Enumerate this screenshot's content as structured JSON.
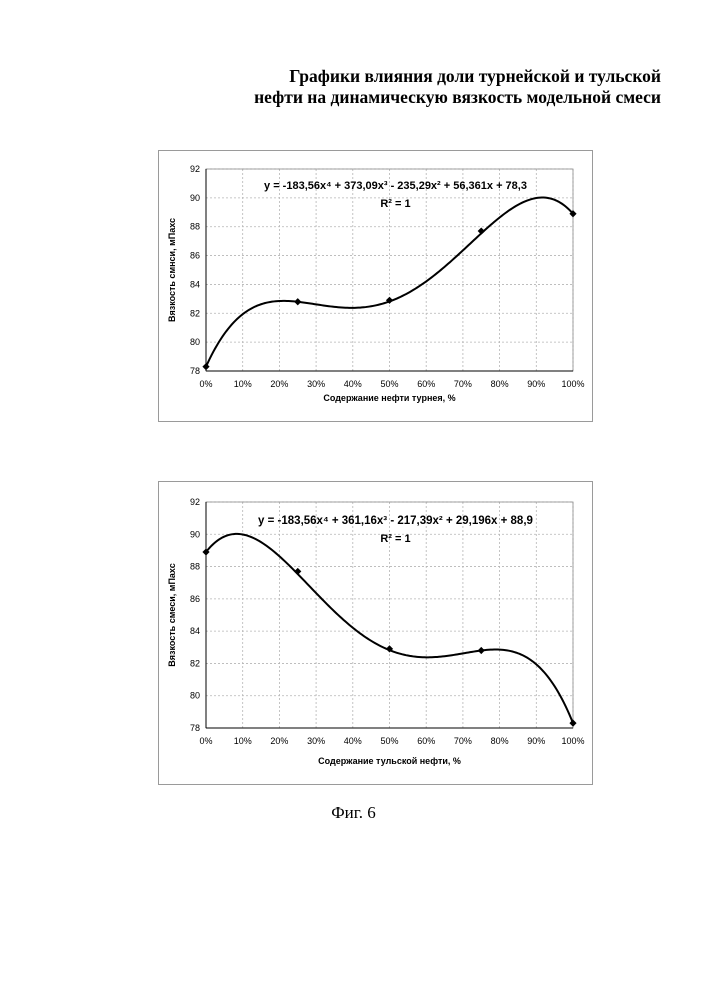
{
  "page": {
    "title_line1": "Графики влияния доли турнейской и тульской",
    "title_line2": "нефти на динамическую вязкость модельной смеси",
    "caption": "Фиг. 6"
  },
  "chart_data": [
    {
      "type": "line",
      "x": [
        0,
        25,
        50,
        75,
        100
      ],
      "x_unit": "%",
      "values": [
        78.3,
        82.8,
        82.9,
        87.7,
        88.9
      ],
      "trendline": "polynomial order 4",
      "equation": "y = -183,56x⁴ + 373,09x³ - 235,29x² + 56,361x + 78,3",
      "r_squared": "R² = 1",
      "coefficients": [
        -183.56,
        373.09,
        -235.29,
        56.361,
        78.3
      ],
      "xlabel": "Содержание нефти турнея, %",
      "ylabel": "Вязкость смнси, мПахс",
      "ylim": [
        78,
        92
      ],
      "xlim": [
        0,
        100
      ],
      "y_ticks": [
        "78",
        "80",
        "82",
        "84",
        "86",
        "88",
        "90",
        "92"
      ],
      "x_ticks": [
        "0%",
        "10%",
        "20%",
        "30%",
        "40%",
        "50%",
        "60%",
        "70%",
        "80%",
        "90%",
        "100%"
      ],
      "grid": "horizontal and vertical dashed",
      "legend": "none"
    },
    {
      "type": "line",
      "x": [
        0,
        25,
        50,
        75,
        100
      ],
      "x_unit": "%",
      "values": [
        88.9,
        87.7,
        82.9,
        82.8,
        78.3
      ],
      "trendline": "polynomial order 4",
      "equation": "y = -183,56x⁴ + 361,16x³ - 217,39x² + 29,196x + 88,9",
      "r_squared": "R² = 1",
      "coefficients": [
        -183.56,
        361.16,
        -217.39,
        29.196,
        88.9
      ],
      "xlabel": "Содержание тульской нефти, %",
      "ylabel": "Вязкость смеси, мПахс",
      "ylim": [
        78,
        92
      ],
      "xlim": [
        0,
        100
      ],
      "y_ticks": [
        "78",
        "80",
        "82",
        "84",
        "86",
        "88",
        "90",
        "92"
      ],
      "x_ticks": [
        "0%",
        "10%",
        "20%",
        "30%",
        "40%",
        "50%",
        "60%",
        "70%",
        "80%",
        "90%",
        "100%"
      ],
      "grid": "horizontal and vertical dashed",
      "legend": "none"
    }
  ]
}
